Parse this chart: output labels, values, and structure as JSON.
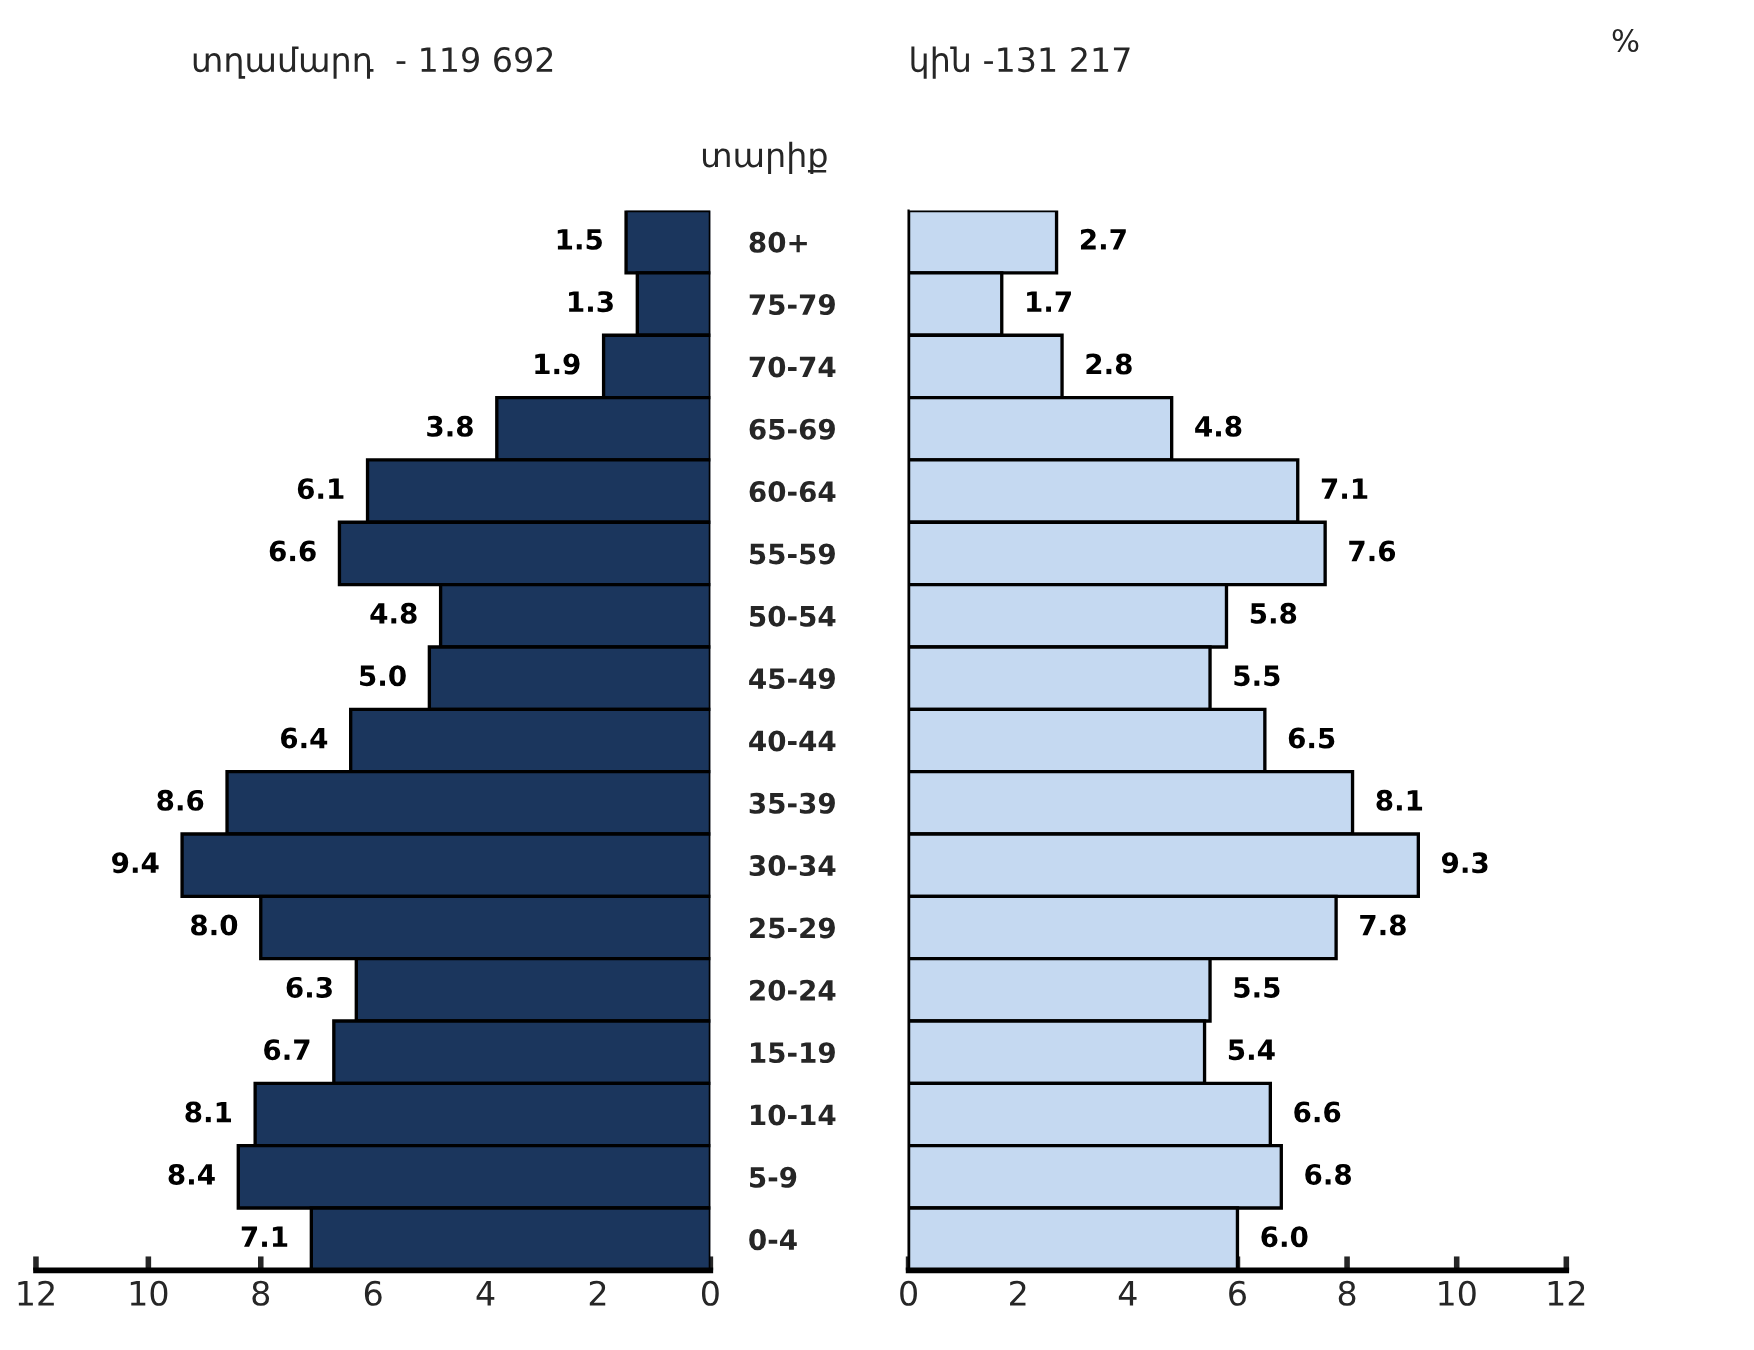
{
  "chart_data": [
    {
      "type": "bar",
      "orientation": "horizontal",
      "title": "տղամարդ  - 119 692",
      "ylabel": "տարիք",
      "categories": [
        "80+",
        "75-79",
        "70-74",
        "65-69",
        "60-64",
        "55-59",
        "50-54",
        "45-49",
        "40-44",
        "35-39",
        "30-34",
        "25-29",
        "20-24",
        "15-19",
        "10-14",
        "5-9",
        "0-4"
      ],
      "series": [
        {
          "color": "#1b365d",
          "values": [
            1.5,
            1.3,
            1.9,
            3.8,
            6.1,
            6.6,
            4.8,
            5.0,
            6.4,
            8.6,
            9.4,
            8.0,
            6.3,
            6.7,
            8.1,
            8.4,
            7.1
          ],
          "value_labels": [
            "1.5",
            "1.3",
            "1.9",
            "3.8",
            "6.1",
            "6.6",
            "4.8",
            "5.0",
            "6.4",
            "8.6",
            "9.4",
            "8.0",
            "6.3",
            "6.7",
            "8.1",
            "8.4",
            "7.1"
          ]
        }
      ],
      "xlim": [
        12,
        0
      ],
      "xticks": [
        12,
        10,
        8,
        6,
        4,
        2,
        0
      ]
    },
    {
      "type": "bar",
      "orientation": "horizontal",
      "title": "կին -131 217",
      "annotations": [
        "%"
      ],
      "series": [
        {
          "color": "#c5d9f1",
          "values": [
            2.7,
            1.7,
            2.8,
            4.8,
            7.1,
            7.6,
            5.8,
            5.5,
            6.5,
            8.1,
            9.3,
            7.8,
            5.5,
            5.4,
            6.6,
            6.8,
            6.0
          ],
          "value_labels": [
            "2.7",
            "1.7",
            "2.8",
            "4.8",
            "7.1",
            "7.6",
            "5.8",
            "5.5",
            "6.5",
            "8.1",
            "9.3",
            "7.8",
            "5.5",
            "5.4",
            "6.6",
            "6.8",
            "6.0"
          ]
        }
      ],
      "xlim": [
        0,
        12
      ],
      "xticks": [
        0,
        2,
        4,
        6,
        8,
        10,
        12
      ],
      "tick_labels": "x"
    }
  ]
}
